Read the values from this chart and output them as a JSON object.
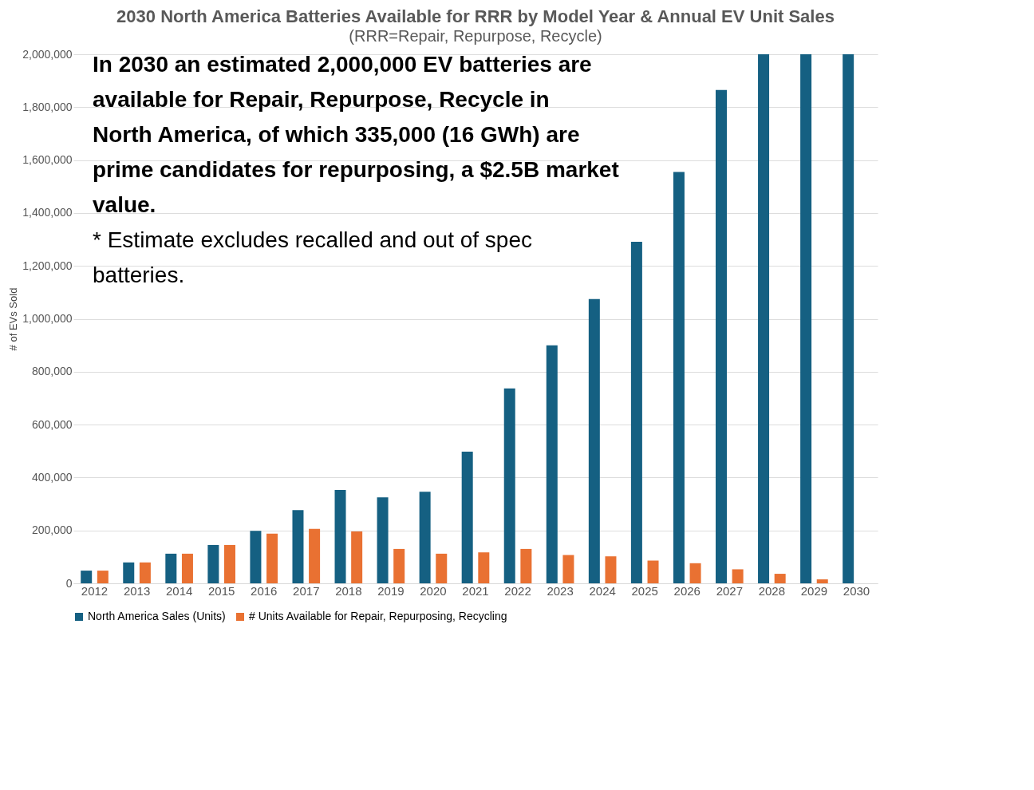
{
  "chart_data": {
    "type": "bar",
    "title": "2030 North America Batteries Available for RRR by Model Year & Annual EV Unit Sales",
    "subtitle": "(RRR=Repair, Repurpose, Recycle)",
    "ylabel": "# of EVs Sold",
    "categories": [
      "2012",
      "2013",
      "2014",
      "2015",
      "2016",
      "2017",
      "2018",
      "2019",
      "2020",
      "2021",
      "2022",
      "2023",
      "2024",
      "2025",
      "2026",
      "2027",
      "2028",
      "2029",
      "2030"
    ],
    "series": [
      {
        "name": "North America Sales (Units)",
        "color": "#156082",
        "values": [
          48000,
          79000,
          112000,
          145000,
          198000,
          277000,
          353000,
          325000,
          346000,
          498000,
          737000,
          900000,
          1075000,
          1291000,
          1555000,
          1865000,
          2000000,
          2000000,
          2000000
        ]
      },
      {
        "name": "# Units Available for Repair, Repurposing, Recycling",
        "color": "#e97132",
        "values": [
          48000,
          79000,
          112000,
          145000,
          188000,
          206000,
          196000,
          130000,
          112000,
          117000,
          130000,
          107000,
          102000,
          86000,
          76000,
          53000,
          36000,
          15000,
          null
        ]
      }
    ],
    "ylim": [
      0,
      2000000
    ],
    "yticks": [
      0,
      {
        "value": 200000,
        "label": "200,000"
      },
      {
        "value": 400000,
        "label": "400,000"
      },
      {
        "value": 600000,
        "label": "600,000"
      },
      {
        "value": 800000,
        "label": "800,000"
      },
      {
        "value": 1000000,
        "label": "1,000,000"
      },
      {
        "value": 1200000,
        "label": "1,200,000"
      },
      {
        "value": 1400000,
        "label": "1,400,000"
      },
      {
        "value": 1600000,
        "label": "1,600,000"
      },
      {
        "value": 1800000,
        "label": "1,800,000"
      },
      {
        "value": 2000000,
        "label": "2,000,000"
      }
    ],
    "grid": "y",
    "legend": "bottom",
    "annotations": [
      "In 2030 an estimated 2,000,000 EV batteries are available for Repair, Repurpose, Recycle in North America, of which 335,000 (16 GWh) are prime candidates for repurposing, a $2.5B market value.",
      "* Estimate excludes recalled and out of spec batteries."
    ]
  }
}
